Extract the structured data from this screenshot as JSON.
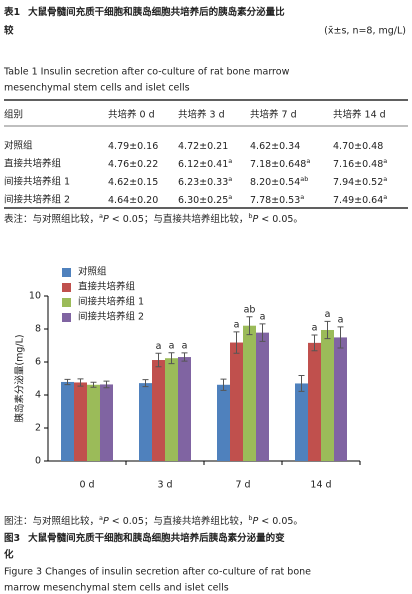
{
  "table_title": {
    "label": "表1",
    "text": "大鼠骨髓间充质干细胞和胰岛细胞共培养后的胰岛素分泌量比",
    "text_cont": "较",
    "unit": "(x̄±s, n=8, mg/L)"
  },
  "table_title_en": [
    "Table 1   Insulin secretion after co-culture of rat bone marrow",
    "mesenchymal stem cells and islet cells"
  ],
  "table": {
    "header": [
      "组别",
      "共培养 0 d",
      "共培养 3 d",
      "共培养 7 d",
      "共培养 14 d"
    ],
    "rows": [
      [
        "对照组",
        {
          "value": "4.79±0.16"
        },
        {
          "value": "4.72±0.21"
        },
        {
          "value": "4.62±0.34"
        },
        {
          "value": "4.70±0.48"
        }
      ],
      [
        "直接共培养组",
        {
          "value": "4.76±0.22"
        },
        {
          "value": "6.12±0.41",
          "mark": "a"
        },
        {
          "value": "7.18±0.648",
          "mark": "a"
        },
        {
          "value": "7.16±0.48",
          "mark": "a"
        }
      ],
      [
        "间接共培养组 1",
        {
          "value": "4.62±0.15"
        },
        {
          "value": "6.23±0.33",
          "mark": "a"
        },
        {
          "value": "8.20±0.54",
          "mark": "ab"
        },
        {
          "value": "7.94±0.52",
          "mark": "a"
        }
      ],
      [
        "间接共培养组 2",
        {
          "value": "4.64±0.20"
        },
        {
          "value": "6.30±0.25",
          "mark": "a"
        },
        {
          "value": "7.78±0.53",
          "mark": "a"
        },
        {
          "value": "7.49±0.64",
          "mark": "a"
        }
      ]
    ]
  },
  "table_note": [
    "表注：与对照组比较，",
    "a",
    "P",
    " < 0.05；与直接共培养组比较，",
    "b",
    "P",
    " < 0.05。"
  ],
  "chart_data": {
    "type": "bar",
    "y_label": "胰岛素分泌量(mg/L)",
    "categories": [
      "0 d",
      "3 d",
      "7 d",
      "14 d"
    ],
    "ylim": [
      0,
      10
    ],
    "yticks": [
      0,
      2,
      4,
      6,
      8,
      10
    ],
    "series": [
      {
        "name": "对照组",
        "color": "#4f81bd",
        "values": [
          4.79,
          4.72,
          4.62,
          4.7
        ],
        "errors": [
          0.16,
          0.21,
          0.34,
          0.48
        ]
      },
      {
        "name": "直接共培养组",
        "color": "#c0504d",
        "values": [
          4.76,
          6.12,
          7.18,
          7.16
        ],
        "errors": [
          0.22,
          0.41,
          0.648,
          0.48
        ],
        "annotations": [
          null,
          "a",
          "a",
          "a"
        ]
      },
      {
        "name": "间接共培养组 1",
        "color": "#9bbb59",
        "values": [
          4.62,
          6.23,
          8.2,
          7.94
        ],
        "errors": [
          0.15,
          0.33,
          0.54,
          0.52
        ],
        "annotations": [
          null,
          "a",
          "ab",
          "a"
        ]
      },
      {
        "name": "间接共培养组 2",
        "color": "#8064a2",
        "values": [
          4.64,
          6.3,
          7.78,
          7.49
        ],
        "errors": [
          0.2,
          0.25,
          0.53,
          0.64
        ],
        "annotations": [
          null,
          "a",
          "a",
          "a"
        ]
      }
    ]
  },
  "figure_note": [
    "图注：与对照组比较，",
    "a",
    "P",
    " < 0.05；与直接共培养组比较，",
    "b",
    "P",
    " < 0.05。"
  ],
  "figure_title": {
    "label": "图3",
    "text": "大鼠骨髓间充质干细胞和胰岛细胞共培养后胰岛素分泌量的变",
    "text_cont": "化"
  },
  "figure_title_en": [
    "Figure 3   Changes of insulin secretion after co-culture of rat bone",
    "marrow mesenchymal stem cells and islet cells"
  ]
}
